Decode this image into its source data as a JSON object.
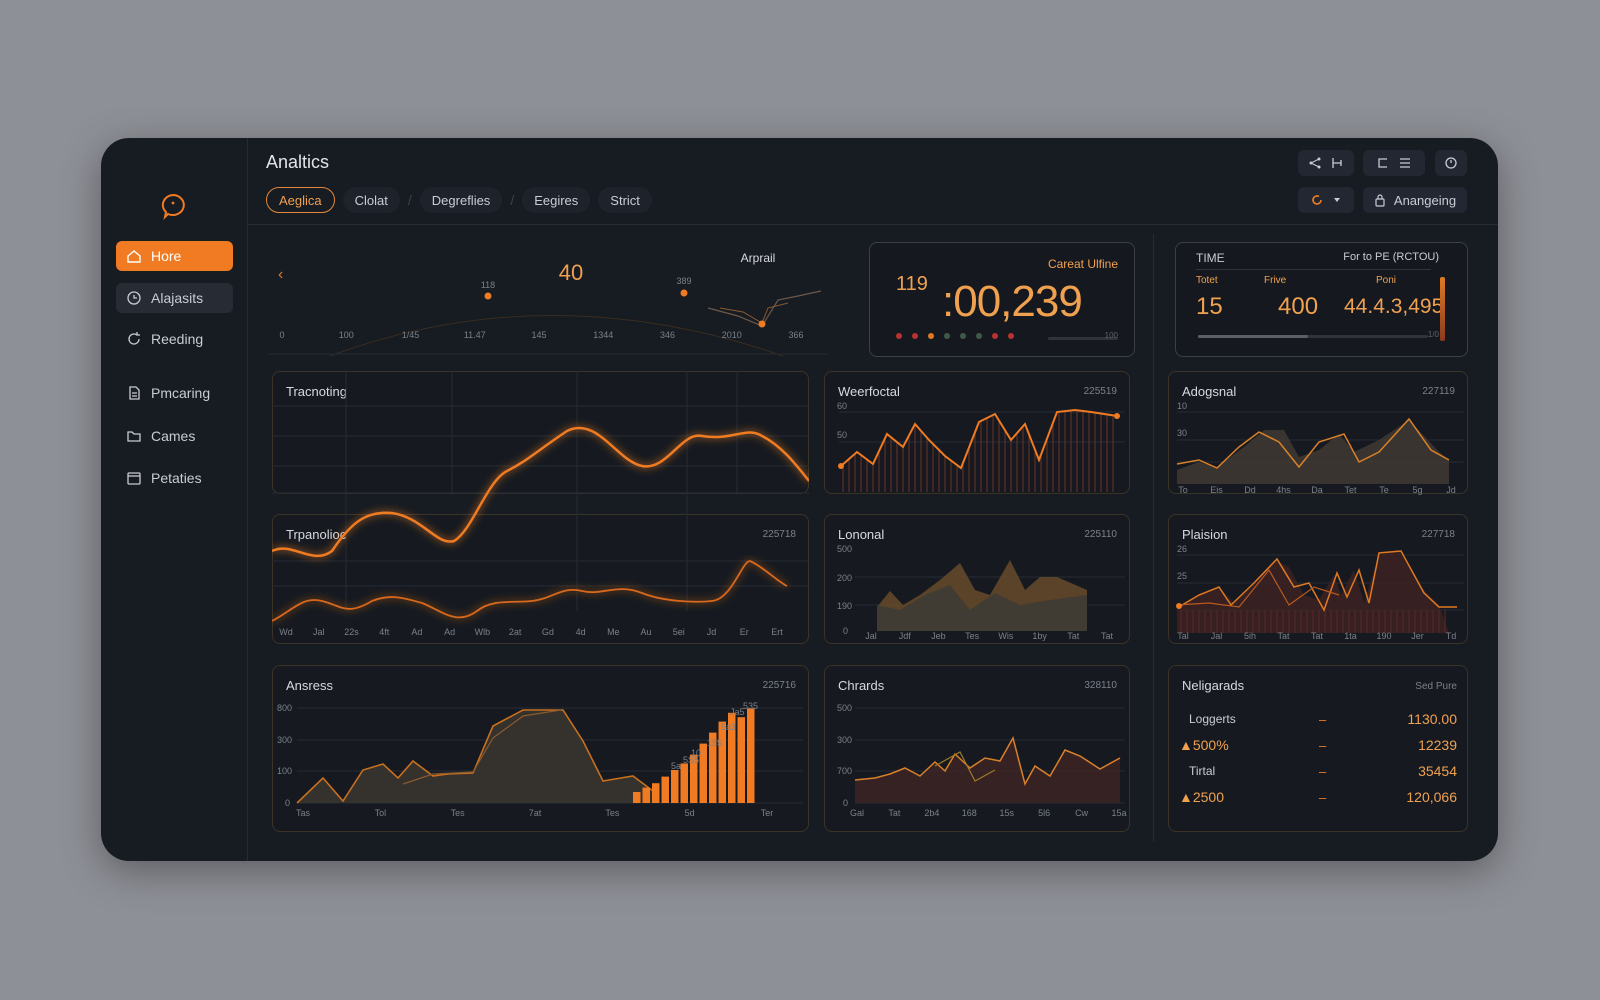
{
  "app_title": "Analtics",
  "tabs": [
    {
      "label": "Aeglica",
      "active": true
    },
    {
      "label": "Clolat"
    },
    {
      "label": "Degreflies"
    },
    {
      "label": "Eegires"
    },
    {
      "label": "Strict"
    }
  ],
  "toolbar": {
    "dropdown_label": "Anangeing"
  },
  "sidebar": {
    "items": [
      {
        "label": "Hore",
        "icon": "home-icon"
      },
      {
        "label": "Alajasits",
        "icon": "clock-icon"
      },
      {
        "label": "Reeding",
        "icon": "refresh-icon"
      },
      {
        "label": "Pmcaring",
        "icon": "document-icon"
      },
      {
        "label": "Cames",
        "icon": "folder-icon"
      },
      {
        "label": "Petaties",
        "icon": "calendar-icon"
      }
    ]
  },
  "top_strip": {
    "big_value": "40",
    "label": "Arprail",
    "point_labels": [
      "118",
      "389"
    ],
    "x_labels": [
      "0",
      "100",
      "1/45",
      "11.47",
      "145",
      "1344",
      "346",
      "2010",
      "366"
    ]
  },
  "kpi_card": {
    "title": "Careat Ulfine",
    "small_value": "119",
    "big_value": ":00,239",
    "dots": [
      "#b8342c",
      "#b8342c",
      "#e07a22",
      "#3c5a45",
      "#3c5a45",
      "#3c5a45",
      "#b8342c",
      "#b8342c"
    ],
    "footer_label": "100"
  },
  "time_card": {
    "title": "TIME",
    "right_title": "For to PE (RCTOU)",
    "stats": [
      {
        "label": "Totet",
        "value": "15"
      },
      {
        "label": "Frive",
        "value": "400"
      },
      {
        "label": "Poni",
        "value": "44.4.3,495"
      }
    ],
    "footer_label": "1/0"
  },
  "panels": {
    "tracnoting": {
      "title": "Tracnoting"
    },
    "trpanolioc": {
      "title": "Trpanolioc",
      "code": "225718",
      "x_labels": [
        "Wd",
        "Jal",
        "22s",
        "4ft",
        "Ad",
        "Ad",
        "Wlb",
        "2at",
        "Gd",
        "4d",
        "Me",
        "Au",
        "5ei",
        "Jd",
        "Er",
        "Ert"
      ]
    },
    "weerfoctal": {
      "title": "Weerfoctal",
      "code": "225519",
      "y_labels": [
        "60",
        "50"
      ]
    },
    "adogsnal": {
      "title": "Adogsnal",
      "code": "227119",
      "y_labels": [
        "10",
        "30"
      ],
      "x_labels": [
        "To",
        "Eis",
        "Dd",
        "4hs",
        "Da",
        "Tet",
        "Te",
        "5g",
        "Jd"
      ]
    },
    "lononal": {
      "title": "Lononal",
      "code": "225110",
      "y_labels": [
        "500",
        "200",
        "190",
        "0"
      ],
      "x_labels": [
        "Jal",
        "Jdf",
        "Jeb",
        "Tes",
        "Wis",
        "1by",
        "Tat",
        "Tat"
      ]
    },
    "plaision": {
      "title": "Plaision",
      "code": "227718",
      "y_labels": [
        "26",
        "25"
      ],
      "x_labels": [
        "Tal",
        "Jal",
        "5ih",
        "Tat",
        "Tat",
        "1ta",
        "190",
        "Jer",
        "Td"
      ]
    },
    "ansress": {
      "title": "Ansress",
      "code": "225716",
      "y_labels": [
        "800",
        "300",
        "100",
        "0"
      ],
      "x_labels": [
        "Tas",
        "Tol",
        "Tes",
        "7at",
        "Tes",
        "5d",
        "Ter"
      ],
      "bar_labels": [
        "5a",
        "5S5",
        "10",
        "155",
        "5a3",
        "Ja5",
        "535"
      ]
    },
    "chrards": {
      "title": "Chrards",
      "code": "328110",
      "y_labels": [
        "500",
        "300",
        "700",
        "0"
      ],
      "x_labels": [
        "Gal",
        "Tat",
        "2b4",
        "168",
        "15s",
        "5l6",
        "Cw",
        "15a"
      ]
    }
  },
  "neligarads": {
    "title": "Neligarads",
    "subtitle": "Sed Pure",
    "rows": [
      {
        "label": "Loggerts",
        "dash": "–",
        "value": "1130.00",
        "orange": true
      },
      {
        "label": "▲500%",
        "dash": "–",
        "value": "12239",
        "orange": true,
        "label_orange": true
      },
      {
        "label": "Tirtal",
        "dash": "–",
        "value": "35454",
        "orange": true
      },
      {
        "label": "▲2500",
        "dash": "–",
        "value": "120,066",
        "orange": true,
        "label_orange": true
      }
    ]
  }
}
